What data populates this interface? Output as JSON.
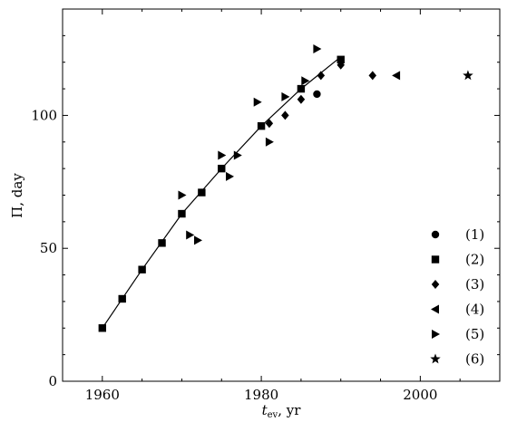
{
  "chart_data": {
    "type": "scatter",
    "xlabel_main": "t",
    "xlabel_sub": "ev",
    "xlabel_unit": ", yr",
    "ylabel": "Π, day",
    "xlim": [
      1955,
      2010
    ],
    "ylim": [
      0,
      140
    ],
    "xticks": [
      1960,
      1980,
      2000
    ],
    "yticks": [
      0,
      50,
      100
    ],
    "grid": false,
    "legend_position": "bottom-right",
    "series": [
      {
        "name": "(1)",
        "marker": "circle",
        "points": [
          [
            1987,
            108
          ]
        ]
      },
      {
        "name": "(2)",
        "marker": "square",
        "points": [
          [
            1960,
            20
          ],
          [
            1962.5,
            31
          ],
          [
            1965,
            42
          ],
          [
            1967.5,
            52
          ],
          [
            1970,
            63
          ],
          [
            1972.5,
            71
          ],
          [
            1975,
            80
          ],
          [
            1980,
            96
          ],
          [
            1985,
            110
          ],
          [
            1990,
            121
          ]
        ]
      },
      {
        "name": "(3)",
        "marker": "diamond",
        "points": [
          [
            1981,
            97
          ],
          [
            1983,
            100
          ],
          [
            1985,
            106
          ],
          [
            1987.5,
            115
          ],
          [
            1990,
            119
          ],
          [
            1994,
            115
          ]
        ]
      },
      {
        "name": "(4)",
        "marker": "triangle-left",
        "points": [
          [
            1997,
            115
          ]
        ]
      },
      {
        "name": "(5)",
        "marker": "triangle-right",
        "points": [
          [
            1970,
            70
          ],
          [
            1971,
            55
          ],
          [
            1972,
            53
          ],
          [
            1975,
            85
          ],
          [
            1976,
            77
          ],
          [
            1977,
            85
          ],
          [
            1979.5,
            105
          ],
          [
            1981,
            90
          ],
          [
            1983,
            107
          ],
          [
            1985.5,
            113
          ],
          [
            1987,
            125
          ]
        ]
      },
      {
        "name": "(6)",
        "marker": "star",
        "points": [
          [
            2006,
            115
          ]
        ]
      }
    ],
    "fit_line": [
      [
        1960,
        20
      ],
      [
        1965,
        42
      ],
      [
        1970,
        63
      ],
      [
        1975,
        80
      ],
      [
        1980,
        96
      ],
      [
        1985,
        110
      ],
      [
        1990,
        122
      ]
    ]
  }
}
